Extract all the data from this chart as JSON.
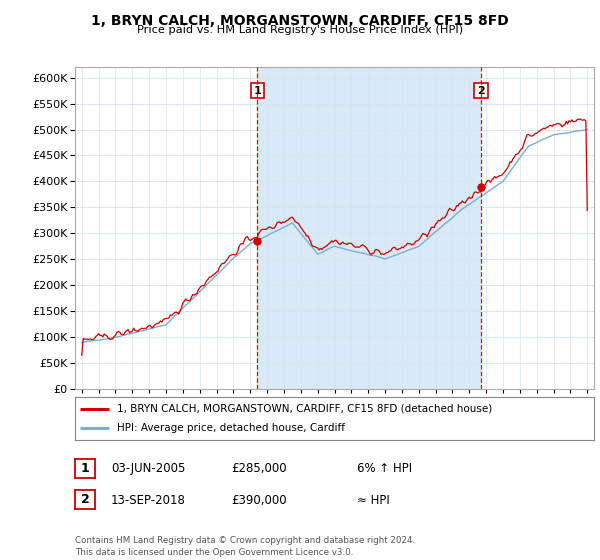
{
  "title": "1, BRYN CALCH, MORGANSTOWN, CARDIFF, CF15 8FD",
  "subtitle": "Price paid vs. HM Land Registry's House Price Index (HPI)",
  "ylabel_ticks": [
    0,
    50000,
    100000,
    150000,
    200000,
    250000,
    300000,
    350000,
    400000,
    450000,
    500000,
    550000,
    600000
  ],
  "ylim": [
    0,
    620000
  ],
  "xlim_start": 1994.6,
  "xlim_end": 2025.4,
  "marker1_x": 2005.42,
  "marker1_y": 285000,
  "marker2_x": 2018.7,
  "marker2_y": 390000,
  "legend_label_red": "1, BRYN CALCH, MORGANSTOWN, CARDIFF, CF15 8FD (detached house)",
  "legend_label_blue": "HPI: Average price, detached house, Cardiff",
  "table_rows": [
    {
      "num": "1",
      "date": "03-JUN-2005",
      "price": "£285,000",
      "hpi": "6% ↑ HPI"
    },
    {
      "num": "2",
      "date": "13-SEP-2018",
      "price": "£390,000",
      "hpi": "≈ HPI"
    }
  ],
  "footer": "Contains HM Land Registry data © Crown copyright and database right 2024.\nThis data is licensed under the Open Government Licence v3.0.",
  "hpi_color": "#7aaed4",
  "hpi_fill_color": "#d8eaf7",
  "price_color": "#cc0000",
  "vline_color": "#cc0000",
  "background_color": "#ffffff",
  "grid_color": "#d8e4ef"
}
